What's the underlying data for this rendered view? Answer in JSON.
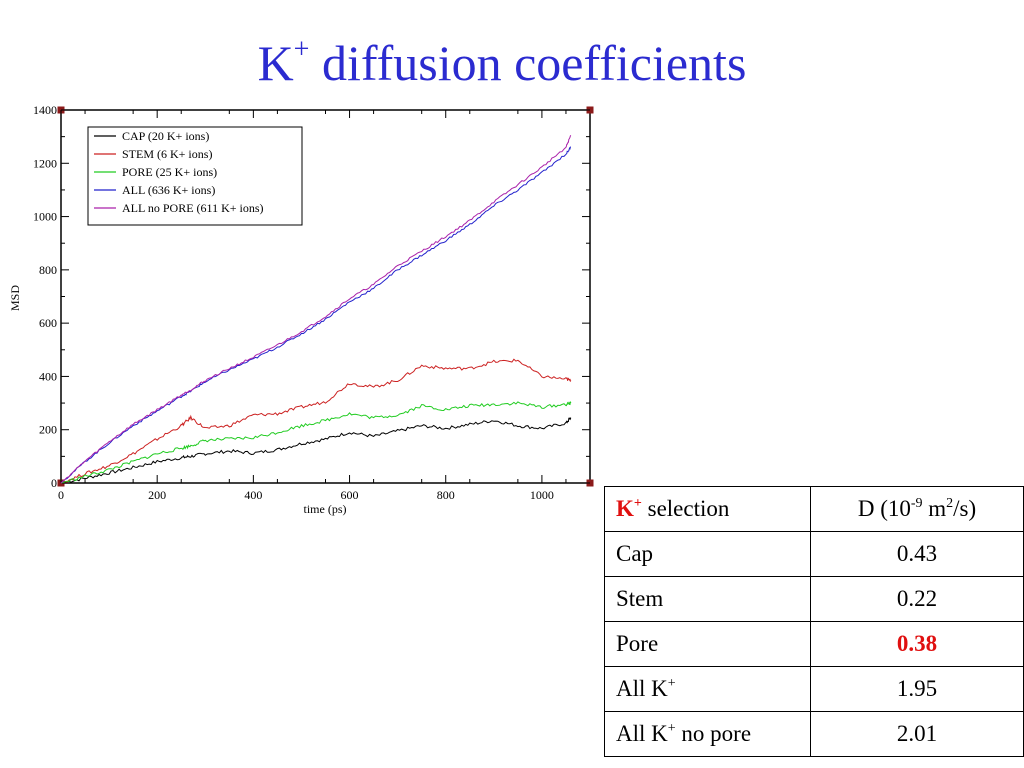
{
  "slide": {
    "title_main": "K",
    "title_sup": "+",
    "title_rest": " diffusion coefficients"
  },
  "chart_data": {
    "type": "line",
    "xlabel": "time (ps)",
    "ylabel": "MSD",
    "xlim": [
      0,
      1100
    ],
    "ylim": [
      0,
      1400
    ],
    "x_ticks": [
      0,
      200,
      400,
      600,
      800,
      1000
    ],
    "y_ticks": [
      0,
      200,
      400,
      600,
      800,
      1000,
      1200,
      1400
    ],
    "grid": false,
    "legend_position": "top-left",
    "x": [
      0,
      50,
      100,
      150,
      200,
      250,
      270,
      300,
      350,
      400,
      450,
      500,
      550,
      600,
      650,
      700,
      750,
      800,
      850,
      900,
      950,
      1000,
      1050,
      1060
    ],
    "series": [
      {
        "name": "CAP (20 K+ ions)",
        "color": "#000000",
        "values": [
          0,
          18,
          38,
          58,
          80,
          95,
          100,
          110,
          120,
          112,
          125,
          148,
          165,
          190,
          175,
          195,
          215,
          205,
          220,
          235,
          215,
          205,
          225,
          245
        ]
      },
      {
        "name": "STEM (6 K+ ions)",
        "color": "#cc2222",
        "values": [
          0,
          35,
          65,
          110,
          165,
          215,
          245,
          205,
          215,
          255,
          260,
          285,
          305,
          375,
          360,
          385,
          440,
          430,
          430,
          455,
          460,
          400,
          390,
          385
        ]
      },
      {
        "name": "PORE (25 K+ ions)",
        "color": "#22cc22",
        "values": [
          0,
          25,
          50,
          80,
          110,
          130,
          140,
          160,
          165,
          170,
          190,
          215,
          235,
          260,
          245,
          255,
          290,
          275,
          290,
          295,
          300,
          285,
          295,
          300
        ]
      },
      {
        "name": "ALL (636 K+ ions)",
        "color": "#2222cc",
        "values": [
          0,
          80,
          150,
          215,
          270,
          325,
          345,
          380,
          425,
          465,
          510,
          560,
          615,
          680,
          730,
          800,
          855,
          910,
          970,
          1040,
          1100,
          1165,
          1235,
          1260
        ]
      },
      {
        "name": "ALL no PORE (611 K+ ions)",
        "color": "#aa22aa",
        "values": [
          0,
          82,
          155,
          220,
          275,
          330,
          350,
          385,
          430,
          472,
          518,
          568,
          625,
          692,
          745,
          815,
          870,
          925,
          985,
          1055,
          1120,
          1185,
          1260,
          1305
        ]
      }
    ]
  },
  "table": {
    "header": {
      "selection_k": "K",
      "selection_sup": "+",
      "selection_rest": " selection",
      "d_prefix": "D (10",
      "d_exp": "-9",
      "d_mid": " m",
      "d_exp2": "2",
      "d_suffix": "/s)"
    },
    "rows": [
      {
        "label": "Cap",
        "label_sup": "",
        "label_rest": "",
        "value": "0.43"
      },
      {
        "label": "Stem",
        "label_sup": "",
        "label_rest": "",
        "value": "0.22"
      },
      {
        "label": "Pore",
        "label_sup": "",
        "label_rest": "",
        "value": "0.38"
      },
      {
        "label": "All K",
        "label_sup": "+",
        "label_rest": "",
        "value": "1.95"
      },
      {
        "label": "All K",
        "label_sup": "+",
        "label_rest": " no pore",
        "value": "2.01"
      }
    ]
  }
}
